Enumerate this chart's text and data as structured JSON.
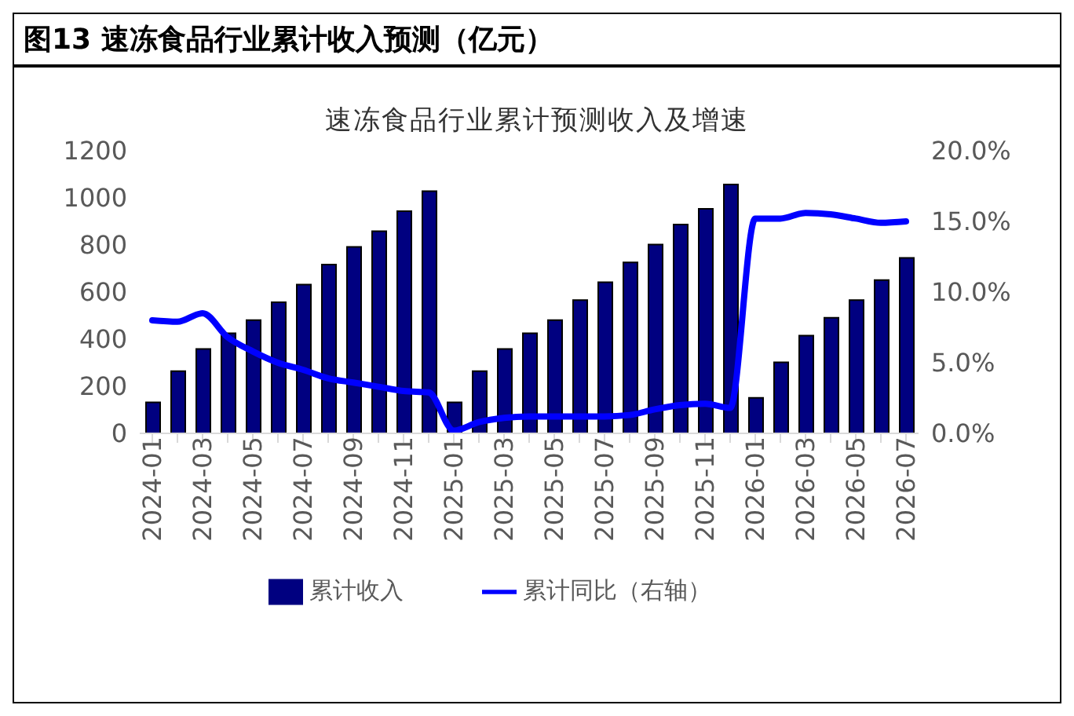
{
  "chart_data": {
    "type": "bar",
    "title": "图13 速冻食品行业累计收入预测（亿元）",
    "subtitle": "速冻食品行业累计预测收入及增速",
    "categories": [
      "2024-01",
      null,
      "2024-03",
      null,
      "2024-05",
      null,
      "2024-07",
      null,
      "2024-09",
      null,
      "2024-11",
      null,
      "2025-01",
      null,
      "2025-03",
      null,
      "2025-05",
      null,
      "2025-07",
      null,
      "2025-09",
      null,
      "2025-11",
      null,
      "2026-01",
      null,
      "2026-03",
      null,
      "2026-05",
      null,
      "2026-07"
    ],
    "series": [
      {
        "name": "累计收入",
        "color": "#000080",
        "values": [
          132,
          264,
          358,
          425,
          481,
          557,
          632,
          717,
          792,
          858,
          943,
          1028,
          132,
          264,
          358,
          425,
          481,
          566,
          642,
          726,
          802,
          887,
          953,
          1057,
          151,
          302,
          415,
          491,
          566,
          651,
          745
        ]
      },
      {
        "name": "累计同比（右轴）",
        "type": "line",
        "axis": "y2",
        "color": "#0000ff",
        "values": [
          8.0,
          7.9,
          8.5,
          6.8,
          5.8,
          5.0,
          4.5,
          3.9,
          3.6,
          3.3,
          3.0,
          2.9,
          0.2,
          0.8,
          1.1,
          1.2,
          1.2,
          1.2,
          1.2,
          1.3,
          1.7,
          2.0,
          2.1,
          1.8,
          15.2,
          15.2,
          15.6,
          15.5,
          15.2,
          14.9,
          15.0
        ]
      }
    ],
    "ylim": [
      0,
      1200
    ],
    "yticks": [
      0,
      200,
      400,
      600,
      800,
      1000,
      1200
    ],
    "y2lim": [
      0,
      20
    ],
    "y2ticks": [
      {
        "value": 0,
        "label": "0.0%"
      },
      {
        "value": 5,
        "label": "5.0%"
      },
      {
        "value": 10,
        "label": "10.0%"
      },
      {
        "value": 15,
        "label": "15.0%"
      },
      {
        "value": 20,
        "label": "20.0%"
      }
    ],
    "grid": false,
    "legend": "bottom",
    "marker": "none"
  }
}
